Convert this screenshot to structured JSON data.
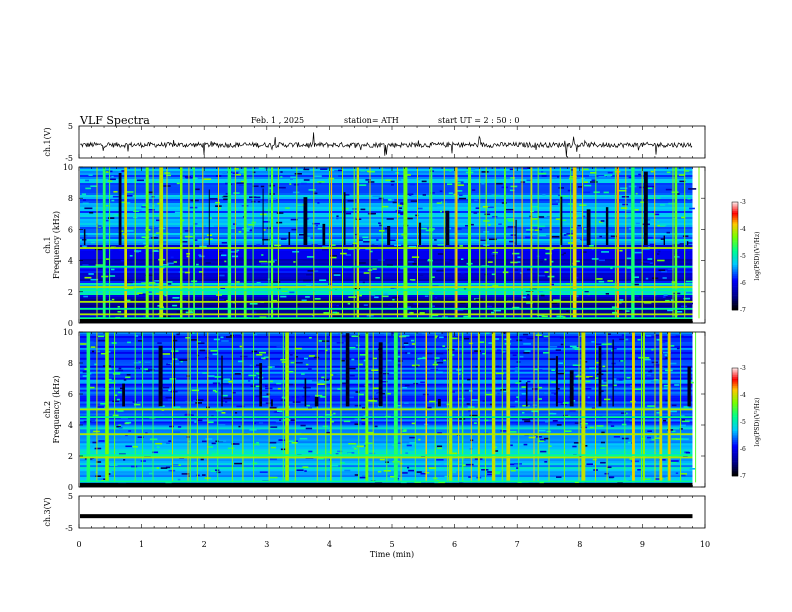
{
  "header": {
    "title": "VLF  Spectra",
    "date": "Feb. 1  , 2025",
    "station": "station= ATH",
    "start_ut": "start  UT  =    2  : 50 : 0"
  },
  "chart_data": [
    {
      "type": "line",
      "panel": "ch1-waveform",
      "ylabel": "ch.1(V)",
      "ylim": [
        -5,
        5
      ],
      "yticks": [
        "5",
        "-5"
      ],
      "xlim": [
        0,
        10
      ],
      "x_extent_min": 9.8,
      "baseline_v": -0.9,
      "color": "#000000"
    },
    {
      "type": "heatmap",
      "panel": "ch1-spectrogram",
      "ylabel": "ch.1\nFrequency  (kHz)",
      "ylabel_lines": [
        "ch.1",
        "Frequency  (kHz)"
      ],
      "ylim": [
        0,
        10
      ],
      "yticks": [
        "0",
        "2",
        "4",
        "6",
        "8",
        "10"
      ],
      "xlim": [
        0,
        10
      ],
      "x_extent_min": 9.8,
      "colorbar": {
        "label": "log(PSD)(V²/Hz)",
        "range": [
          -7,
          -3
        ],
        "ticks": [
          "-3",
          "-4",
          "-5",
          "-6",
          "-7"
        ]
      },
      "horizontal_lines_khz": [
        0.3,
        0.55,
        0.9,
        1.35,
        2.1,
        2.3,
        3.6,
        4.8
      ],
      "vertical_burst_times_min": [
        0.1,
        0.35,
        0.6,
        0.75,
        1.05,
        1.25,
        1.6,
        1.8,
        2.05,
        2.35,
        2.6,
        2.9,
        3.05,
        3.35,
        3.6,
        3.85,
        4.05,
        4.2,
        4.45,
        4.7,
        4.95,
        5.2,
        5.4,
        5.65,
        5.85,
        6.05,
        6.25,
        6.5,
        6.75,
        6.95,
        7.2,
        7.5,
        7.7,
        7.9,
        8.1,
        8.4,
        8.6,
        8.85,
        9.05,
        9.3,
        9.5,
        9.7
      ]
    },
    {
      "type": "heatmap",
      "panel": "ch2-spectrogram",
      "ylabel": "ch.2\nFrequency  (kHz)",
      "ylabel_lines": [
        "ch.2",
        "Frequency  (kHz)"
      ],
      "ylim": [
        0,
        10
      ],
      "yticks": [
        "0",
        "2",
        "4",
        "6",
        "8",
        "10"
      ],
      "xlim": [
        0,
        10
      ],
      "x_extent_min": 9.8,
      "colorbar": {
        "label": "log(PSD)(V²/Hz)",
        "range": [
          -7,
          -3
        ],
        "ticks": [
          "-3",
          "-4",
          "-5",
          "-6",
          "-7"
        ]
      },
      "horizontal_lines_khz": [
        0.35,
        1.9,
        2.05,
        3.4,
        4.5,
        5.0
      ],
      "vertical_burst_times_min": [
        0.1,
        0.4,
        0.7,
        1.0,
        1.3,
        1.55,
        1.75,
        2.05,
        2.3,
        2.6,
        2.85,
        3.1,
        3.3,
        3.6,
        3.8,
        4.05,
        4.3,
        4.55,
        4.75,
        5.0,
        5.2,
        5.5,
        5.7,
        5.9,
        6.1,
        6.35,
        6.6,
        6.85,
        7.1,
        7.35,
        7.6,
        7.85,
        8.05,
        8.3,
        8.55,
        8.8,
        9.0,
        9.25,
        9.45,
        9.7
      ]
    },
    {
      "type": "line",
      "panel": "ch3-waveform",
      "ylabel": "ch.3(V)",
      "ylim": [
        -5,
        5
      ],
      "yticks": [
        "5",
        "-5"
      ],
      "xlim": [
        0,
        10
      ],
      "x_extent_min": 9.8,
      "baseline_v": -1.3,
      "color": "#000000"
    }
  ],
  "x_axis": {
    "label": "Time  (min)",
    "ticks": [
      "0",
      "1",
      "2",
      "3",
      "4",
      "5",
      "6",
      "7",
      "8",
      "9",
      "10"
    ]
  }
}
